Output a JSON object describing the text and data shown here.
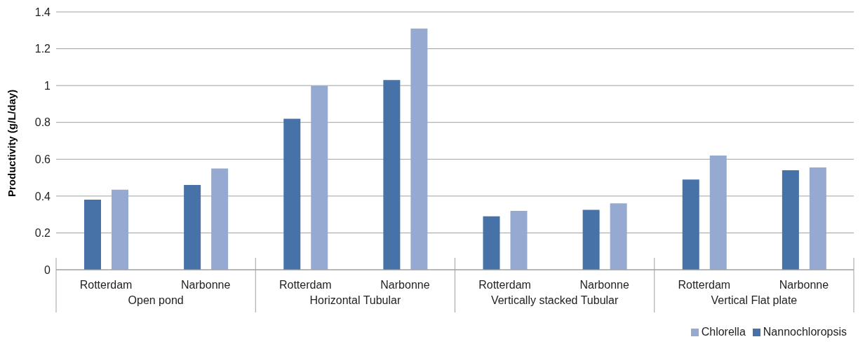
{
  "chart_data": {
    "type": "bar",
    "categories": [
      "Rotterdam",
      "Narbonne",
      "Rotterdam",
      "Narbonne",
      "Rotterdam",
      "Narbonne",
      "Rotterdam",
      "Narbonne"
    ],
    "series": [
      {
        "name": "Nannochloropsis",
        "color": "#4672a8",
        "values": [
          0.38,
          0.46,
          0.82,
          1.03,
          0.29,
          0.325,
          0.49,
          0.54
        ]
      },
      {
        "name": "Chlorella",
        "color": "#95a9d1",
        "values": [
          0.435,
          0.55,
          1.0,
          1.31,
          0.32,
          0.36,
          0.62,
          0.555
        ]
      }
    ],
    "annotations": [
      "Open pond",
      "Horizontal Tubular",
      "Vertically stacked Tubular",
      "Vertical Flat plate"
    ],
    "ylabel": "Productivity (g/L/day)",
    "ylim": [
      0,
      1.4
    ],
    "yticks": [
      0,
      0.2,
      0.4,
      0.6,
      0.8,
      1,
      1.2,
      1.4
    ],
    "grid": "y",
    "legend": "bottom right"
  }
}
